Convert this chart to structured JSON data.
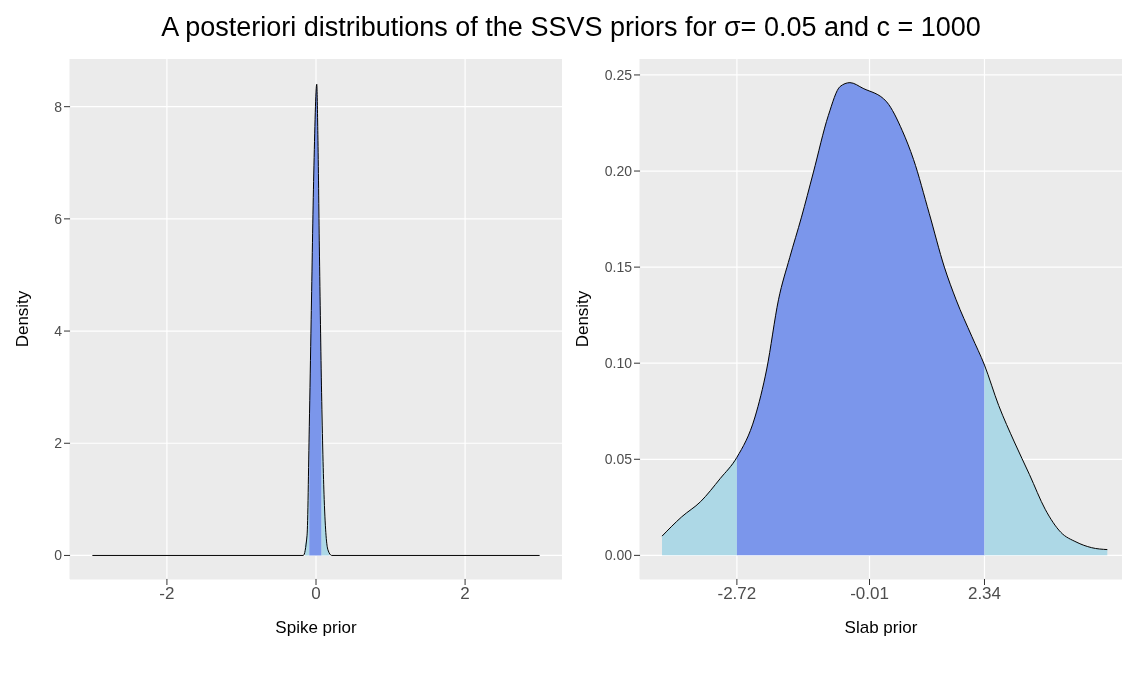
{
  "chart_data": [
    {
      "type": "area",
      "title": "A posteriori distributions of the SSVS priors for σ= 0.05 and c = 1000",
      "xlabel": "Spike prior",
      "ylabel": "Density",
      "xlim": [
        -3.3,
        3.3
      ],
      "xticks": [
        -2,
        0,
        2
      ],
      "ylim": [
        -0.42,
        8.85
      ],
      "yticks": [
        0,
        2,
        4,
        6,
        8
      ],
      "grid": true,
      "legend": false,
      "series": [
        {
          "type": "area",
          "color": "#add8e6",
          "x": [
            -0.15,
            -0.12,
            -0.09
          ],
          "values": [
            0.2,
            0.36,
            2.3
          ]
        },
        {
          "type": "area",
          "color": "#7b96eb",
          "x": [
            -0.09,
            -0.065,
            -0.03,
            0.01,
            0.025,
            0.045,
            0.075
          ],
          "values": [
            2.3,
            4.2,
            6.8,
            8.4,
            7.5,
            5.5,
            2.9
          ]
        },
        {
          "type": "area",
          "color": "#add8e6",
          "x": [
            0.075,
            0.11,
            0.16,
            0.18
          ],
          "values": [
            2.9,
            1.0,
            0.1,
            0.05
          ]
        },
        {
          "type": "line",
          "color": "#000000",
          "x": [
            -3,
            -0.17,
            -0.12,
            -0.09,
            -0.065,
            -0.03,
            0.01,
            0.025,
            0.045,
            0.075,
            0.11,
            0.16,
            0.21,
            3
          ],
          "values": [
            0,
            0,
            0.36,
            2.3,
            4.2,
            6.8,
            8.4,
            7.5,
            5.5,
            2.9,
            1.0,
            0.1,
            0,
            0
          ]
        }
      ]
    },
    {
      "type": "area",
      "xlabel": "Slab prior",
      "ylabel": "Density",
      "xlim": [
        -4.7,
        5.15
      ],
      "xticks": [
        -2.72,
        -0.01,
        2.34
      ],
      "ylim": [
        -0.0123,
        0.2583
      ],
      "yticks": [
        {
          "value": 0,
          "label": "0.00"
        },
        {
          "value": 0.05,
          "label": "0.05"
        },
        {
          "value": 0.1,
          "label": "0.10"
        },
        {
          "value": 0.15,
          "label": "0.15"
        },
        {
          "value": 0.2,
          "label": "0.20"
        },
        {
          "value": 0.25,
          "label": "0.25"
        }
      ],
      "grid": true,
      "legend": false,
      "series": [
        {
          "type": "area",
          "color": "#add8e6",
          "x": [
            -4.25,
            -3.85,
            -3.46,
            -3.06,
            -2.72
          ],
          "values": [
            0.01,
            0.02,
            0.028,
            0.04,
            0.051
          ]
        },
        {
          "type": "area",
          "color": "#7b96eb",
          "x": [
            -2.72,
            -2.35,
            -2.11,
            -1.87,
            -1.64,
            -1.4,
            -1.16,
            -0.85,
            -0.61,
            -0.41,
            -0.14,
            0.34,
            0.66,
            0.89,
            1.21,
            1.52,
            1.76,
            2.08,
            2.34
          ],
          "values": [
            0.051,
            0.072,
            0.097,
            0.133,
            0.155,
            0.176,
            0.199,
            0.229,
            0.244,
            0.246,
            0.243,
            0.236,
            0.221,
            0.206,
            0.178,
            0.15,
            0.133,
            0.114,
            0.099
          ]
        },
        {
          "type": "area",
          "color": "#add8e6",
          "x": [
            2.34,
            2.63,
            2.95,
            3.26,
            3.58,
            3.9,
            4.21,
            4.53,
            4.85
          ],
          "values": [
            0.099,
            0.078,
            0.059,
            0.042,
            0.024,
            0.012,
            0.007,
            0.004,
            0.003
          ]
        },
        {
          "type": "line",
          "color": "#000000",
          "x": [
            -4.25,
            -3.85,
            -3.46,
            -3.06,
            -2.72,
            -2.35,
            -2.11,
            -1.87,
            -1.64,
            -1.4,
            -1.16,
            -0.85,
            -0.61,
            -0.41,
            -0.14,
            0.34,
            0.66,
            0.89,
            1.21,
            1.52,
            1.76,
            2.08,
            2.34,
            2.63,
            2.95,
            3.26,
            3.58,
            3.9,
            4.21,
            4.53,
            4.85
          ],
          "values": [
            0.01,
            0.02,
            0.028,
            0.04,
            0.051,
            0.072,
            0.097,
            0.133,
            0.155,
            0.176,
            0.199,
            0.229,
            0.244,
            0.246,
            0.243,
            0.236,
            0.221,
            0.206,
            0.178,
            0.15,
            0.133,
            0.114,
            0.099,
            0.078,
            0.059,
            0.042,
            0.024,
            0.012,
            0.007,
            0.004,
            0.003
          ]
        }
      ]
    }
  ]
}
